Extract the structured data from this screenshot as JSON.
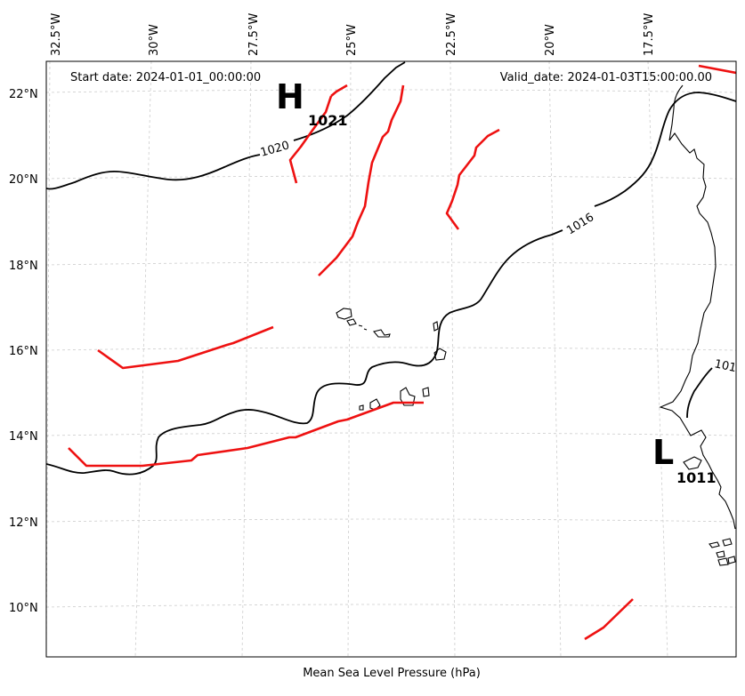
{
  "map": {
    "start_date": "Start date: 2024-01-01_00:00:00",
    "valid_date": "Valid_date: 2024-01-03T15:00:00.00",
    "caption": "Mean Sea Level Pressure (hPa)",
    "lon_ticks": [
      "32.5°W",
      "30°W",
      "27.5°W",
      "25°W",
      "22.5°W",
      "20°W",
      "17.5°W"
    ],
    "lat_ticks": [
      "22°N",
      "20°N",
      "18°N",
      "16°N",
      "14°N",
      "12°N",
      "10°N"
    ],
    "high_center": {
      "letter": "H",
      "value": "1021"
    },
    "low_center": {
      "letter": "L",
      "value": "1011"
    },
    "contour_labels": [
      "1020",
      "1016",
      "101"
    ],
    "colors": {
      "front": "#ee1111",
      "isobar": "#000000",
      "grid": "#cccccc"
    }
  }
}
